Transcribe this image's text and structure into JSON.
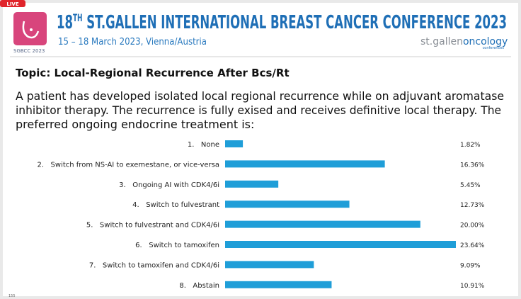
{
  "header": {
    "live": "LIVE",
    "logo_text": "SGBCC 2023",
    "title_number": "18",
    "title_sup": "TH",
    "title_rest": " ST.GALLEN INTERNATIONAL BREAST CANCER CONFERENCE 2023",
    "subtitle": "15 – 18 March 2023, Vienna/Austria",
    "brand_a": "st.gallen",
    "brand_b": "oncology",
    "brand_sub": "conferences"
  },
  "topic": "Topic: Local-Regional Recurrence After Bcs/Rt",
  "question": [
    "A patient has developed isolated local regional recurrence while on adjuvant aromatase",
    "inhibitor therapy. The recurrence is fully exised and receives definitive local therapy. The",
    "preferred ongoing endocrine treatment is:"
  ],
  "footer": "155",
  "chart_data": {
    "type": "bar",
    "orientation": "horizontal",
    "color": "#1f9ed8",
    "categories": [
      "1.   None",
      "2.   Switch from NS-AI to exemestane, or vice-versa",
      "3.   Ongoing AI with CDK4/6i",
      "4.   Switch to fulvestrant",
      "5.   Switch to fulvestrant and CDK4/6i",
      "6.   Switch to tamoxifen",
      "7.   Switch to tamoxifen and CDK4/6i",
      "8.   Abstain"
    ],
    "values": [
      1.82,
      16.36,
      5.45,
      12.73,
      20.0,
      23.64,
      9.09,
      10.91
    ],
    "value_labels": [
      "1.82%",
      "16.36%",
      "5.45%",
      "12.73%",
      "20.00%",
      "23.64%",
      "9.09%",
      "10.91%"
    ]
  }
}
